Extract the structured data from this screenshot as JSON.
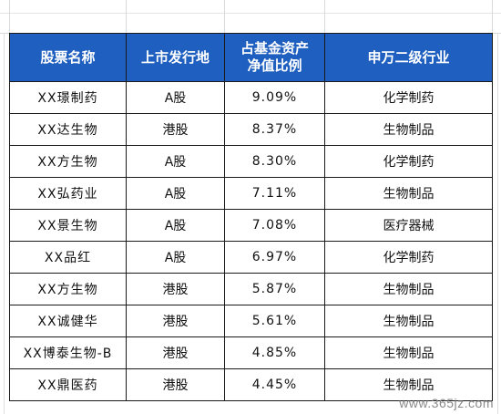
{
  "table": {
    "headers": [
      "股票名称",
      "上市发行地",
      "占基金资产\n净值比例",
      "申万二级行业"
    ],
    "rows": [
      [
        "XX璟制药",
        "A股",
        "9.09%",
        "化学制药"
      ],
      [
        "XX达生物",
        "港股",
        "8.37%",
        "生物制品"
      ],
      [
        "XX方生物",
        "A股",
        "8.30%",
        "化学制药"
      ],
      [
        "XX弘药业",
        "A股",
        "7.11%",
        "生物制品"
      ],
      [
        "XX景生物",
        "A股",
        "7.08%",
        "医疗器械"
      ],
      [
        "XX品红",
        "A股",
        "6.97%",
        "化学制药"
      ],
      [
        "XX方生物",
        "港股",
        "5.87%",
        "生物制品"
      ],
      [
        "XX诚健华",
        "港股",
        "5.61%",
        "生物制品"
      ],
      [
        "XX博泰生物-B",
        "港股",
        "4.85%",
        "生物制品"
      ],
      [
        "XX鼎医药",
        "港股",
        "4.45%",
        "生物制品"
      ]
    ]
  },
  "watermark": "www.365jz.com",
  "colors": {
    "header_bg": "#1f5fbf",
    "header_text": "#ffffff",
    "border": "#1a1a1a"
  }
}
